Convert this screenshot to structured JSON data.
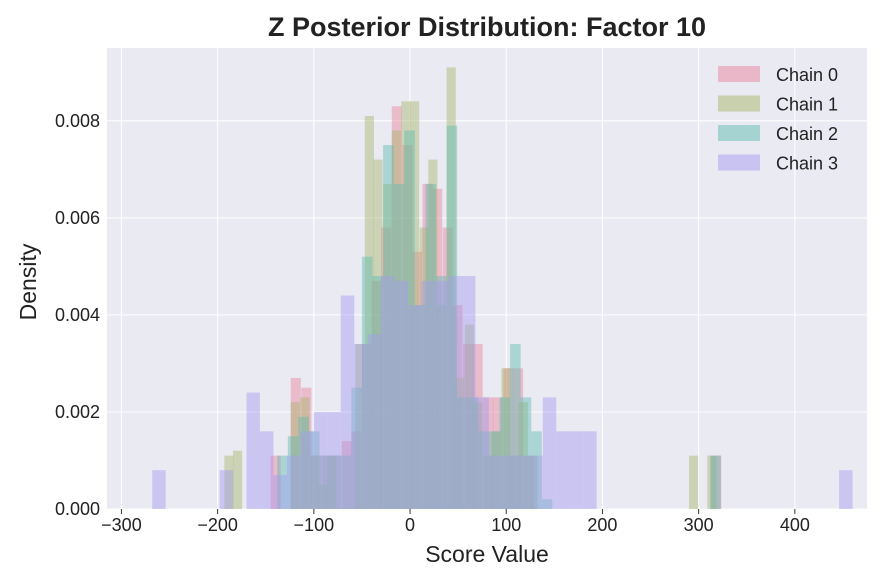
{
  "chart_data": {
    "type": "histogram",
    "title": "Z Posterior Distribution: Factor 10",
    "xlabel": "Score Value",
    "ylabel": "Density",
    "xlim": [
      -315,
      475
    ],
    "ylim": [
      0,
      0.0095
    ],
    "xticks": [
      -300,
      -200,
      -100,
      0,
      100,
      200,
      300,
      400
    ],
    "xtick_labels": [
      "−300",
      "−200",
      "−100",
      "0",
      "100",
      "200",
      "300",
      "400"
    ],
    "yticks": [
      0.0,
      0.002,
      0.004,
      0.006,
      0.008
    ],
    "ytick_labels": [
      "0.000",
      "0.002",
      "0.004",
      "0.006",
      "0.008"
    ],
    "grid": true,
    "legend_position": "top-right",
    "bar_opacity": 0.45,
    "series": [
      {
        "name": "Chain 0",
        "color": "#e8839b",
        "bin_width": 10.5,
        "bins": [
          [
            -145,
            0.0011
          ],
          [
            -124,
            0.0027
          ],
          [
            -113,
            0.0025
          ],
          [
            -103,
            0.0011
          ],
          [
            -92,
            0.0011
          ],
          [
            -82,
            0.0011
          ],
          [
            -71,
            0.0014
          ],
          [
            -61,
            0.0016
          ],
          [
            -50,
            0.0034
          ],
          [
            -50,
            0.0
          ],
          [
            -53,
            0.0
          ],
          [
            -40,
            0.0047
          ],
          [
            -50,
            0.0
          ],
          [
            -53,
            0.0
          ],
          [
            -30,
            0.0058
          ],
          [
            -19,
            0.0083
          ],
          [
            -8,
            0.0075
          ],
          [
            2,
            0.0053
          ],
          [
            13,
            0.0067
          ],
          [
            23,
            0.0066
          ],
          [
            34,
            0.0058
          ],
          [
            44,
            0.0042
          ],
          [
            55,
            0.0034
          ],
          [
            65,
            0.0034
          ],
          [
            76,
            0.0023
          ],
          [
            86,
            0.0023
          ],
          [
            97,
            0.0029
          ],
          [
            107,
            0.0029
          ],
          [
            118,
            0.0011
          ],
          [
            313,
            0.0011
          ]
        ]
      },
      {
        "name": "Chain 1",
        "color": "#a6b56a",
        "bin_width": 9.5,
        "bins": [
          [
            -193,
            0.0011
          ],
          [
            -184,
            0.0012
          ],
          [
            -124,
            0.0022
          ],
          [
            -114,
            0.0023
          ],
          [
            -104,
            0.0011
          ],
          [
            -95,
            0.0005
          ],
          [
            -86,
            0.0011
          ],
          [
            -57,
            0.0034
          ],
          [
            -47,
            0.0081
          ],
          [
            -38,
            0.0072
          ],
          [
            -28,
            0.0067
          ],
          [
            -19,
            0.0078
          ],
          [
            -9,
            0.0084
          ],
          [
            0,
            0.0084
          ],
          [
            10,
            0.0058
          ],
          [
            19,
            0.0072
          ],
          [
            28,
            0.0042
          ],
          [
            38,
            0.0091
          ],
          [
            47,
            0.0027
          ],
          [
            57,
            0.0038
          ],
          [
            66,
            0.0022
          ],
          [
            76,
            0.0011
          ],
          [
            85,
            0.0016
          ],
          [
            95,
            0.0029
          ],
          [
            104,
            0.0011
          ],
          [
            113,
            0.0022
          ],
          [
            123,
            0.0011
          ],
          [
            290,
            0.0011
          ],
          [
            309,
            0.0011
          ]
        ]
      },
      {
        "name": "Chain 2",
        "color": "#5fbcb2",
        "bin_width": 11,
        "bins": [
          [
            -138,
            0.0011
          ],
          [
            -127,
            0.0015
          ],
          [
            -116,
            0.0019
          ],
          [
            -105,
            0.0016
          ],
          [
            -94,
            0.0011
          ],
          [
            -83,
            0.0011
          ],
          [
            -72,
            0.0011
          ],
          [
            -61,
            0.0025
          ],
          [
            -50,
            0.0052
          ],
          [
            -39,
            0.0048
          ],
          [
            -28,
            0.0075
          ],
          [
            -17,
            0.0067
          ],
          [
            -6,
            0.0078
          ],
          [
            5,
            0.0042
          ],
          [
            16,
            0.0067
          ],
          [
            27,
            0.0048
          ],
          [
            38,
            0.0079
          ],
          [
            49,
            0.0023
          ],
          [
            60,
            0.0023
          ],
          [
            71,
            0.0016
          ],
          [
            82,
            0.0016
          ],
          [
            93,
            0.0023
          ],
          [
            104,
            0.0034
          ],
          [
            115,
            0.0023
          ],
          [
            126,
            0.0016
          ],
          [
            137,
            0.0002
          ],
          [
            312,
            0.0011
          ]
        ]
      },
      {
        "name": "Chain 3",
        "color": "#a59bef",
        "bin_width": 14,
        "bins": [
          [
            -268,
            0.0008
          ],
          [
            -198,
            0.0008
          ],
          [
            -170,
            0.0024
          ],
          [
            -156,
            0.0016
          ],
          [
            -142,
            0.0007
          ],
          [
            -128,
            0.0011
          ],
          [
            -114,
            0.0016
          ],
          [
            -100,
            0.002
          ],
          [
            -86,
            0.002
          ],
          [
            -72,
            0.0044
          ],
          [
            -58,
            0.0034
          ],
          [
            -44,
            0.0036
          ],
          [
            -30,
            0.0048
          ],
          [
            -16,
            0.0047
          ],
          [
            -2,
            0.0042
          ],
          [
            12,
            0.0047
          ],
          [
            26,
            0.0047
          ],
          [
            40,
            0.0048
          ],
          [
            54,
            0.0048
          ],
          [
            68,
            0.0023
          ],
          [
            82,
            0.0011
          ],
          [
            96,
            0.0011
          ],
          [
            110,
            0.0011
          ],
          [
            124,
            0.0011
          ],
          [
            138,
            0.0023
          ],
          [
            152,
            0.0016
          ],
          [
            166,
            0.0016
          ],
          [
            180,
            0.0016
          ],
          [
            446,
            0.0008
          ]
        ]
      }
    ]
  }
}
